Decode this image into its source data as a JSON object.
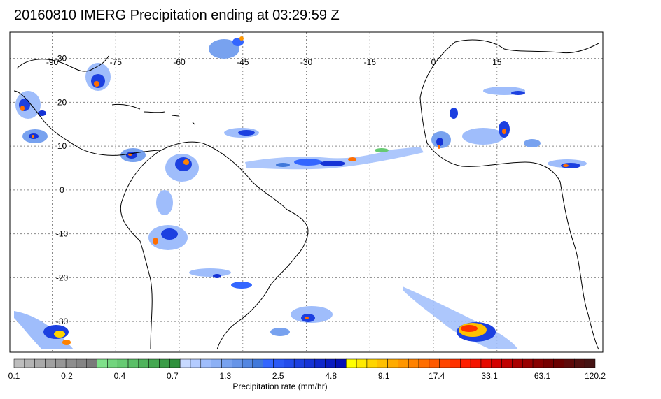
{
  "title": "20160810 IMERG Precipitation ending at 03:29:59 Z",
  "map": {
    "lon_range": [
      -100,
      40
    ],
    "lat_range": [
      -37,
      36
    ],
    "lon_ticks": [
      "-90",
      "-75",
      "-60",
      "-45",
      "-30",
      "-15",
      "0",
      "15"
    ],
    "lat_ticks": [
      "30",
      "20",
      "10",
      "0",
      "-10",
      "-20",
      "-30"
    ],
    "grid": "dotted",
    "colors": {
      "coastline": "#000000",
      "grid": "#8a8a8a",
      "frame": "#000000"
    }
  },
  "colorbar": {
    "title": "Precipitation rate (mm/hr)",
    "labels": [
      "0.1",
      "0.2",
      "0.4",
      "0.7",
      "1.3",
      "2.5",
      "4.8",
      "9.1",
      "17.4",
      "33.1",
      "63.1",
      "120.2"
    ],
    "colors": [
      "#bdbdbd",
      "#b3b3b3",
      "#a9a9a9",
      "#a0a0a0",
      "#969696",
      "#8d8d8d",
      "#848484",
      "#7a7a7a",
      "#7fe08a",
      "#72d57e",
      "#66ca72",
      "#5abf67",
      "#4fb35c",
      "#44a851",
      "#3a9c47",
      "#2f913d",
      "#c7d9ff",
      "#b3cbff",
      "#9fbdfb",
      "#8cb0f5",
      "#78a2ef",
      "#6694e8",
      "#5386e1",
      "#4078da",
      "#3366ff",
      "#2b59f5",
      "#234ceb",
      "#1c40e0",
      "#1533d6",
      "#0f27cc",
      "#0a1bc1",
      "#0510b5",
      "#ffff00",
      "#ffea00",
      "#ffd500",
      "#ffc000",
      "#ffab00",
      "#ff9600",
      "#ff8200",
      "#ff6e00",
      "#ff5a00",
      "#ff4600",
      "#ff3200",
      "#ff1e00",
      "#f51400",
      "#e60a00",
      "#d40000",
      "#c00000",
      "#aa0000",
      "#990000",
      "#880000",
      "#770000",
      "#6a0000",
      "#5e0a0a",
      "#521010",
      "#461414"
    ]
  }
}
